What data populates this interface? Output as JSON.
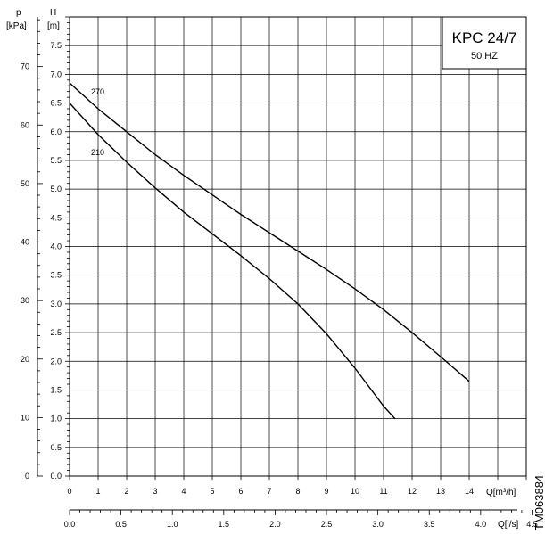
{
  "chart_data": {
    "type": "line",
    "title": "KPC 24/7",
    "subtitle": "50 HZ",
    "watermark": "TM063884",
    "head_axis": {
      "label": "H",
      "unit": "[m]",
      "range": [
        0,
        8
      ],
      "ticks": [
        "0.0",
        "0.5",
        "1.0",
        "1.5",
        "2.0",
        "2.5",
        "3.0",
        "3.5",
        "4.0",
        "4.5",
        "5.0",
        "5.5",
        "6.0",
        "6.5",
        "7.0",
        "7.5"
      ]
    },
    "pressure_axis": {
      "label": "p",
      "unit": "[kPa]",
      "range": [
        0,
        78.48
      ],
      "ticks": [
        "0",
        "10",
        "20",
        "30",
        "40",
        "50",
        "60",
        "70"
      ]
    },
    "flow_axis_m3h": {
      "label": "Q[m³/h]",
      "range": [
        0,
        16
      ],
      "ticks": [
        "0",
        "1",
        "2",
        "3",
        "4",
        "5",
        "6",
        "7",
        "8",
        "9",
        "10",
        "11",
        "12",
        "13",
        "14"
      ]
    },
    "flow_axis_ls": {
      "label": "Q[l/s]",
      "range": [
        0,
        4.444
      ],
      "ticks": [
        "0.0",
        "0.5",
        "1.0",
        "1.5",
        "2.0",
        "2.5",
        "3.0",
        "3.5",
        "4.0",
        "4.5"
      ]
    },
    "series": [
      {
        "name": "270",
        "x": [
          0,
          1,
          2,
          3,
          4,
          5,
          6,
          7,
          8,
          9,
          10,
          11,
          12,
          13,
          14
        ],
        "y": [
          6.85,
          6.4,
          6.0,
          5.6,
          5.24,
          4.9,
          4.56,
          4.24,
          3.92,
          3.6,
          3.26,
          2.9,
          2.5,
          2.08,
          1.65
        ]
      },
      {
        "name": "210",
        "x": [
          0,
          1,
          2,
          3,
          4,
          5,
          6,
          7,
          8,
          9,
          10,
          11,
          11.4
        ],
        "y": [
          6.5,
          5.95,
          5.47,
          5.02,
          4.6,
          4.22,
          3.84,
          3.44,
          3.0,
          2.48,
          1.88,
          1.22,
          1.0
        ]
      }
    ],
    "grid": true
  }
}
